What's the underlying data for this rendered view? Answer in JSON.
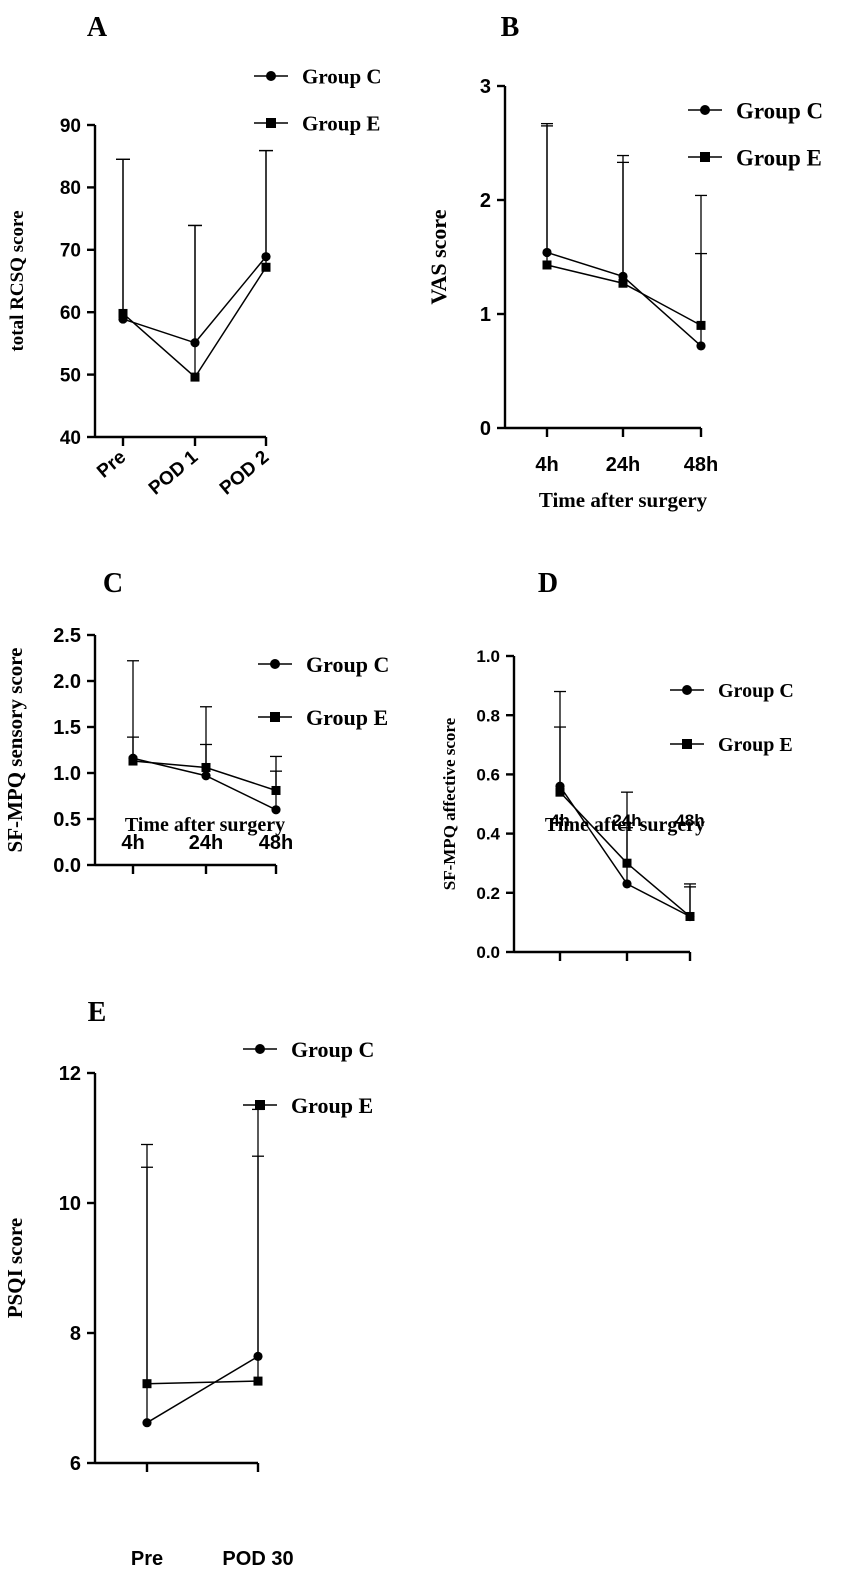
{
  "chart_data": [
    {
      "panel": "A",
      "type": "line",
      "ylabel": "total RCSQ  score",
      "xlabel": "",
      "categories": [
        "Pre",
        "POD 1",
        "POD 2"
      ],
      "ylim": [
        40,
        90
      ],
      "yticks": [
        40,
        50,
        60,
        70,
        80,
        90
      ],
      "legend": [
        "Group C",
        "Group E"
      ],
      "series": [
        {
          "name": "Group C",
          "marker": "circle",
          "values": [
            58.9,
            55.1,
            68.9
          ],
          "err_upper": [
            84.5,
            73.9,
            85.9
          ]
        },
        {
          "name": "Group E",
          "marker": "square",
          "values": [
            59.8,
            49.6,
            67.2
          ],
          "err_upper": [
            84.5,
            73.9,
            85.9
          ]
        }
      ]
    },
    {
      "panel": "B",
      "type": "line",
      "ylabel": "VAS score",
      "xlabel": "Time after surgery",
      "categories": [
        "4h",
        "24h",
        "48h"
      ],
      "ylim": [
        0,
        3
      ],
      "yticks": [
        0,
        1,
        2,
        3
      ],
      "legend": [
        "Group C",
        "Group E"
      ],
      "series": [
        {
          "name": "Group C",
          "marker": "circle",
          "values": [
            1.54,
            1.33,
            0.72
          ],
          "err_upper": [
            2.67,
            2.39,
            1.53
          ]
        },
        {
          "name": "Group E",
          "marker": "square",
          "values": [
            1.43,
            1.27,
            0.9
          ],
          "err_upper": [
            2.65,
            2.33,
            2.04
          ]
        }
      ]
    },
    {
      "panel": "C",
      "type": "line",
      "ylabel": "SF-MPQ sensory score",
      "xlabel": "Time after surgery",
      "categories": [
        "4h",
        "24h",
        "48h"
      ],
      "ylim": [
        0,
        2.5
      ],
      "yticks": [
        0.0,
        0.5,
        1.0,
        1.5,
        2.0,
        2.5
      ],
      "ytick_labels": [
        "0.0",
        "0.5",
        "1.0",
        "1.5",
        "2.0",
        "2.5"
      ],
      "legend": [
        "Group C",
        "Group E"
      ],
      "series": [
        {
          "name": "Group C",
          "marker": "circle",
          "values": [
            1.16,
            0.97,
            0.6
          ],
          "err_upper": [
            2.22,
            1.72,
            1.02
          ]
        },
        {
          "name": "Group E",
          "marker": "square",
          "values": [
            1.13,
            1.06,
            0.81
          ],
          "err_upper": [
            1.39,
            1.31,
            1.18
          ]
        }
      ]
    },
    {
      "panel": "D",
      "type": "line",
      "ylabel": "SF-MPQ affective score",
      "xlabel": "Time after surgery",
      "categories": [
        "4h",
        "24h",
        "48h"
      ],
      "ylim": [
        0,
        1.0
      ],
      "yticks": [
        0.0,
        0.2,
        0.4,
        0.6,
        0.8,
        1.0
      ],
      "ytick_labels": [
        "0.0",
        "0.2",
        "0.4",
        "0.6",
        "0.8",
        "1.0"
      ],
      "legend": [
        "Group C",
        "Group E"
      ],
      "series": [
        {
          "name": "Group C",
          "marker": "circle",
          "values": [
            0.56,
            0.23,
            0.12
          ],
          "err_upper": [
            0.88,
            0.42,
            0.23
          ]
        },
        {
          "name": "Group E",
          "marker": "square",
          "values": [
            0.54,
            0.3,
            0.12
          ],
          "err_upper": [
            0.76,
            0.54,
            0.22
          ]
        }
      ]
    },
    {
      "panel": "E",
      "type": "line",
      "ylabel": "PSQI score",
      "xlabel": "",
      "categories": [
        "Pre",
        "POD 30"
      ],
      "ylim": [
        6,
        12
      ],
      "yticks": [
        6,
        8,
        10,
        12
      ],
      "legend": [
        "Group C",
        "Group E"
      ],
      "series": [
        {
          "name": "Group C",
          "marker": "circle",
          "values": [
            6.62,
            7.64
          ],
          "err_upper": [
            10.55,
            11.44
          ]
        },
        {
          "name": "Group E",
          "marker": "square",
          "values": [
            7.22,
            7.26
          ],
          "err_upper": [
            10.9,
            10.72
          ]
        }
      ]
    }
  ]
}
